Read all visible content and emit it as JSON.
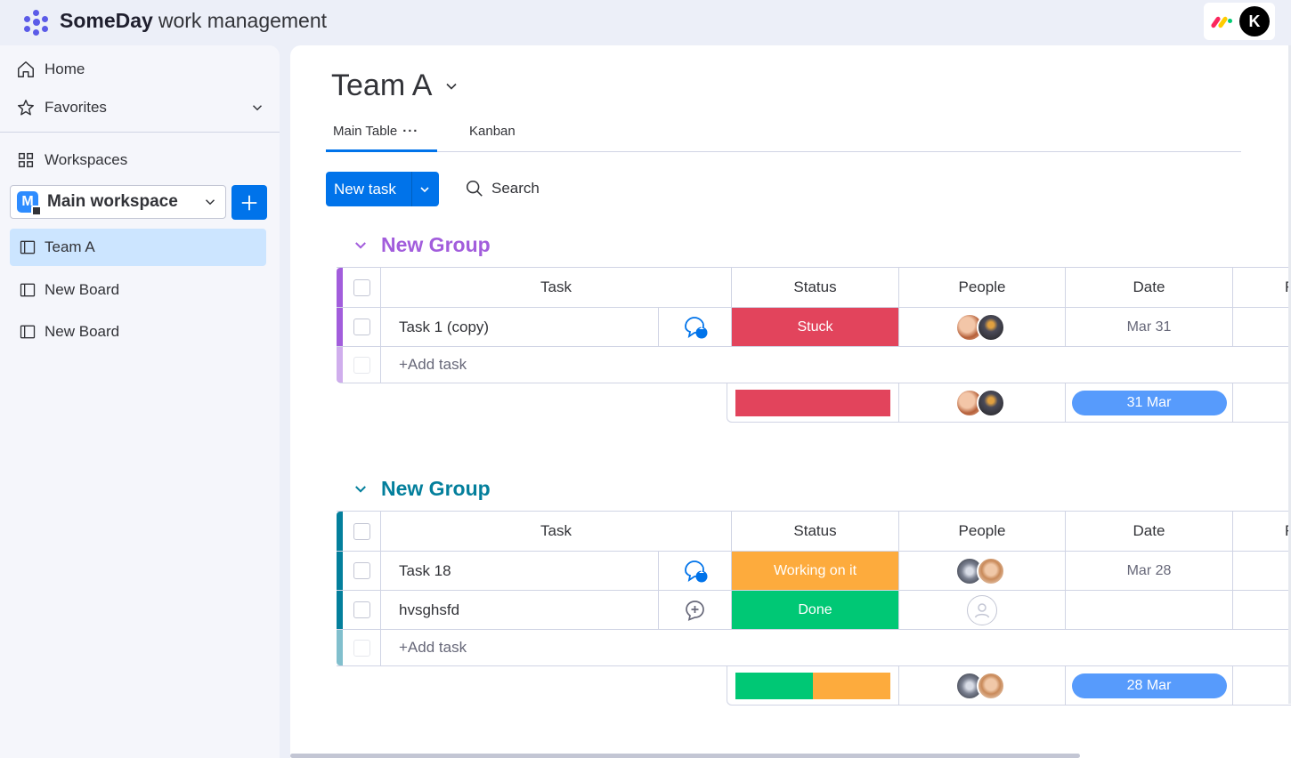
{
  "app": {
    "brand_bold": "SomeDay",
    "brand_rest": "work management",
    "user_initial": "K"
  },
  "sidebar": {
    "home": "Home",
    "favorites": "Favorites",
    "workspaces": "Workspaces",
    "workspace_name": "Main workspace",
    "workspace_icon_letter": "M",
    "boards": [
      {
        "label": "Team A",
        "active": true
      },
      {
        "label": "New Board",
        "active": false
      },
      {
        "label": "New Board",
        "active": false
      }
    ]
  },
  "board": {
    "title": "Team A",
    "tabs": [
      {
        "label": "Main Table",
        "active": true
      },
      {
        "label": "Kanban",
        "active": false
      }
    ],
    "new_task_label": "New task",
    "search_label": "Search"
  },
  "columns": {
    "task": "Task",
    "status": "Status",
    "people": "People",
    "date": "Date",
    "extra_partial": "F"
  },
  "groups": [
    {
      "name": "New Group",
      "color": "#a25ddc",
      "add_task": "+Add task",
      "rows": [
        {
          "task": "Task 1 (copy)",
          "updates": "1",
          "status": "Stuck",
          "status_color": "#e2445c",
          "date": "Mar 31"
        }
      ],
      "summary_date": "31 Mar"
    },
    {
      "name": "New Group",
      "color": "#037f9c",
      "add_task": "+Add task",
      "rows": [
        {
          "task": "Task 18",
          "updates": "1",
          "status": "Working on it",
          "status_color": "#fdab3d",
          "date": "Mar 28"
        },
        {
          "task": "hvsghsfd",
          "updates": "",
          "status": "Done",
          "status_color": "#00c875",
          "date": ""
        }
      ],
      "summary_date": "28 Mar"
    }
  ],
  "colors": {
    "primary": "#0073ea",
    "stuck": "#e2445c",
    "working": "#fdab3d",
    "done": "#00c875",
    "date_pill": "#579bfc"
  }
}
